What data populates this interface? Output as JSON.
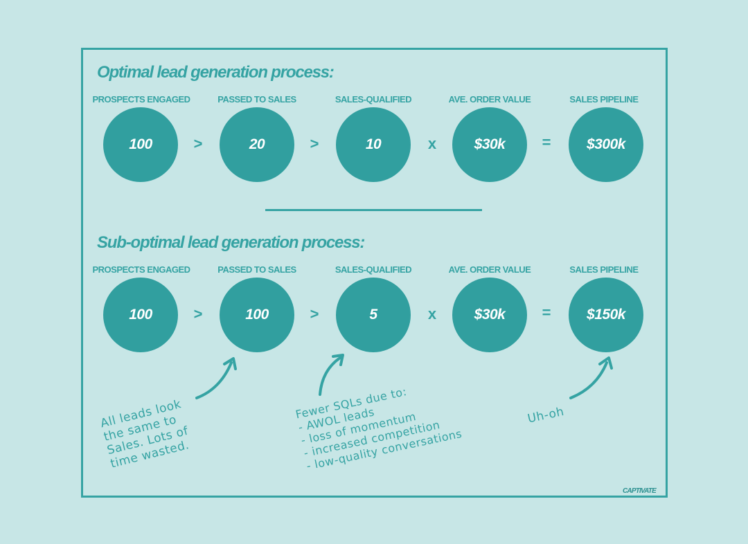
{
  "colors": {
    "background": "#c7e6e6",
    "accent": "#35a3a3",
    "circle_fill": "#319f9f",
    "circle_text": "#ffffff"
  },
  "optimal": {
    "title": "Optimal lead generation process:",
    "labels": [
      "PROSPECTS ENGAGED",
      "PASSED TO SALES",
      "SALES-QUALIFIED",
      "AVE. ORDER VALUE",
      "SALES PIPELINE"
    ],
    "values": [
      "100",
      "20",
      "10",
      "$30k",
      "$300k"
    ],
    "operators": [
      ">",
      ">",
      "x",
      "="
    ]
  },
  "suboptimal": {
    "title": "Sub-optimal lead generation process:",
    "labels": [
      "PROSPECTS ENGAGED",
      "PASSED TO SALES",
      "SALES-QUALIFIED",
      "AVE. ORDER VALUE",
      "SALES PIPELINE"
    ],
    "values": [
      "100",
      "100",
      "5",
      "$30k",
      "$150k"
    ],
    "operators": [
      ">",
      ">",
      "x",
      "="
    ]
  },
  "notes": {
    "leads_same": "All leads look\nthe same to\nSales. Lots of\ntime wasted.",
    "fewer_sqls": "Fewer SQLs due to:\n- AWOL leads\n- loss of momentum\n- increased competition\n- low-quality conversations",
    "uh_oh": "Uh-oh"
  },
  "brand": "CAPTIVATE"
}
